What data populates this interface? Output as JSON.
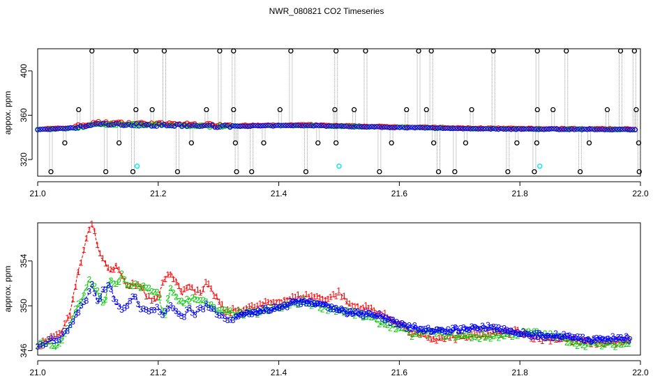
{
  "title": "NWR_080821  CO2 Timeseries",
  "colors": {
    "series1": "#ff0000",
    "series2": "#00cc00",
    "series3": "#0000ff",
    "outlier": "#000000",
    "flag": "#00e5ee",
    "connector": "#999999"
  },
  "chart_data": [
    {
      "type": "scatter",
      "panel": "top",
      "xlabel": "",
      "ylabel": "appox. ppm",
      "xlim": [
        21.0,
        22.0
      ],
      "ylim": [
        305,
        420
      ],
      "xticks": [
        "21.0",
        "21.2",
        "21.4",
        "21.6",
        "21.8",
        "22.0"
      ],
      "yticks": [
        "320",
        "360",
        "400"
      ],
      "baseline": [
        [
          21.0,
          347
        ],
        [
          21.05,
          348
        ],
        [
          21.08,
          350
        ],
        [
          21.1,
          352
        ],
        [
          21.2,
          351
        ],
        [
          21.3,
          350
        ],
        [
          21.4,
          350.5
        ],
        [
          21.45,
          350.8
        ],
        [
          21.5,
          350
        ],
        [
          21.6,
          349
        ],
        [
          21.7,
          348
        ],
        [
          21.8,
          347.5
        ],
        [
          21.9,
          347.3
        ],
        [
          21.995,
          347
        ]
      ],
      "outliers_high": [
        21.09,
        21.163,
        21.21,
        21.302,
        21.325,
        21.42,
        21.495,
        21.544,
        21.632,
        21.653,
        21.756,
        21.829,
        21.877,
        21.967,
        21.99
      ],
      "outliers_mid": [
        21.068,
        21.163,
        21.19,
        21.28,
        21.325,
        21.402,
        21.493,
        21.525,
        21.612,
        21.645,
        21.72,
        21.829,
        21.855,
        21.945,
        21.993
      ],
      "outliers_low": [
        21.045,
        21.135,
        21.255,
        21.328,
        21.375,
        21.465,
        21.495,
        21.587,
        21.657,
        21.71,
        21.795,
        21.828,
        21.915,
        21.997
      ],
      "outliers_bottom": [
        21.022,
        21.113,
        21.158,
        21.232,
        21.33,
        21.355,
        21.445,
        21.567,
        21.665,
        21.692,
        21.78,
        21.824,
        21.9,
        21.998
      ],
      "flagged": [
        [
          21.165,
          314
        ],
        [
          21.5,
          314
        ],
        [
          21.833,
          314
        ]
      ]
    },
    {
      "type": "scatter",
      "panel": "bottom",
      "xlabel": "",
      "ylabel": "approx. ppm",
      "xlim": [
        21.0,
        22.0
      ],
      "ylim": [
        345.6,
        357.4
      ],
      "xticks": [
        "21.0",
        "21.2",
        "21.4",
        "21.6",
        "21.8",
        "22.0"
      ],
      "yticks": [
        "346",
        "350",
        "354"
      ],
      "markers": [
        "1",
        "2",
        "3"
      ],
      "series": [
        {
          "marker": "1",
          "color": "#ff0000",
          "points": [
            [
              21.0,
              346.5
            ],
            [
              21.02,
              347
            ],
            [
              21.04,
              347.6
            ],
            [
              21.055,
              349.5
            ],
            [
              21.065,
              352.5
            ],
            [
              21.075,
              354.5
            ],
            [
              21.085,
              357
            ],
            [
              21.092,
              357.1
            ],
            [
              21.1,
              355
            ],
            [
              21.11,
              354
            ],
            [
              21.12,
              353
            ],
            [
              21.13,
              353.5
            ],
            [
              21.14,
              352.5
            ],
            [
              21.15,
              351.5
            ],
            [
              21.16,
              352
            ],
            [
              21.17,
              351.8
            ],
            [
              21.18,
              351
            ],
            [
              21.19,
              350.5
            ],
            [
              21.2,
              350.8
            ],
            [
              21.21,
              352.5
            ],
            [
              21.22,
              353
            ],
            [
              21.23,
              352.2
            ],
            [
              21.24,
              351
            ],
            [
              21.25,
              352
            ],
            [
              21.26,
              351.5
            ],
            [
              21.27,
              351
            ],
            [
              21.28,
              352
            ],
            [
              21.29,
              351.2
            ],
            [
              21.3,
              350.5
            ],
            [
              21.31,
              349.5
            ],
            [
              21.32,
              349.5
            ],
            [
              21.35,
              349.8
            ],
            [
              21.38,
              350.2
            ],
            [
              21.41,
              350.5
            ],
            [
              21.43,
              350.8
            ],
            [
              21.45,
              350.9
            ],
            [
              21.48,
              350.6
            ],
            [
              21.5,
              351.2
            ],
            [
              21.52,
              350
            ],
            [
              21.55,
              349.8
            ],
            [
              21.58,
              349
            ],
            [
              21.6,
              348.4
            ],
            [
              21.62,
              347.6
            ],
            [
              21.64,
              347.3
            ],
            [
              21.66,
              347
            ],
            [
              21.7,
              347.2
            ],
            [
              21.74,
              347.4
            ],
            [
              21.78,
              347.6
            ],
            [
              21.8,
              347.8
            ],
            [
              21.83,
              347
            ],
            [
              21.87,
              347.1
            ],
            [
              21.9,
              346.8
            ],
            [
              21.94,
              346.7
            ],
            [
              21.98,
              346.8
            ]
          ]
        },
        {
          "marker": "2",
          "color": "#00cc00",
          "points": [
            [
              21.0,
              346.4
            ],
            [
              21.02,
              346.7
            ],
            [
              21.03,
              346.2
            ],
            [
              21.05,
              347.8
            ],
            [
              21.065,
              349.8
            ],
            [
              21.075,
              350.8
            ],
            [
              21.085,
              352.2
            ],
            [
              21.1,
              351.2
            ],
            [
              21.11,
              350
            ],
            [
              21.12,
              352.5
            ],
            [
              21.13,
              351.8
            ],
            [
              21.14,
              352.8
            ],
            [
              21.15,
              351.5
            ],
            [
              21.16,
              352
            ],
            [
              21.18,
              351.5
            ],
            [
              21.2,
              351
            ],
            [
              21.21,
              349
            ],
            [
              21.22,
              351.5
            ],
            [
              21.24,
              350.2
            ],
            [
              21.26,
              350.8
            ],
            [
              21.28,
              350.2
            ],
            [
              21.3,
              349.5
            ],
            [
              21.35,
              349.2
            ],
            [
              21.4,
              349.8
            ],
            [
              21.44,
              350.4
            ],
            [
              21.48,
              349.8
            ],
            [
              21.52,
              349.4
            ],
            [
              21.55,
              348.9
            ],
            [
              21.58,
              348.3
            ],
            [
              21.6,
              348
            ],
            [
              21.62,
              347.4
            ],
            [
              21.65,
              347.6
            ],
            [
              21.7,
              347.3
            ],
            [
              21.74,
              347.2
            ],
            [
              21.78,
              347.4
            ],
            [
              21.82,
              347.6
            ],
            [
              21.86,
              347.2
            ],
            [
              21.9,
              346.6
            ],
            [
              21.94,
              346.5
            ],
            [
              21.98,
              346.6
            ]
          ]
        },
        {
          "marker": "3",
          "color": "#0000ff",
          "points": [
            [
              21.0,
              346.3
            ],
            [
              21.015,
              346.8
            ],
            [
              21.03,
              347
            ],
            [
              21.045,
              347.5
            ],
            [
              21.06,
              348.8
            ],
            [
              21.07,
              349.8
            ],
            [
              21.08,
              350.5
            ],
            [
              21.09,
              351.8
            ],
            [
              21.1,
              350.2
            ],
            [
              21.11,
              351.5
            ],
            [
              21.12,
              351.8
            ],
            [
              21.13,
              350.2
            ],
            [
              21.14,
              349.8
            ],
            [
              21.15,
              350.3
            ],
            [
              21.16,
              351
            ],
            [
              21.17,
              349.8
            ],
            [
              21.18,
              349.5
            ],
            [
              21.2,
              349.7
            ],
            [
              21.21,
              349.2
            ],
            [
              21.22,
              350
            ],
            [
              21.23,
              349.5
            ],
            [
              21.24,
              349
            ],
            [
              21.25,
              349.8
            ],
            [
              21.26,
              349.3
            ],
            [
              21.27,
              349.7
            ],
            [
              21.28,
              350
            ],
            [
              21.3,
              349.3
            ],
            [
              21.32,
              348.8
            ],
            [
              21.35,
              349.3
            ],
            [
              21.38,
              349.6
            ],
            [
              21.41,
              350
            ],
            [
              21.43,
              350.4
            ],
            [
              21.45,
              350.3
            ],
            [
              21.48,
              350
            ],
            [
              21.5,
              349.6
            ],
            [
              21.53,
              349.3
            ],
            [
              21.56,
              349.2
            ],
            [
              21.59,
              348.6
            ],
            [
              21.61,
              348.2
            ],
            [
              21.64,
              347.8
            ],
            [
              21.68,
              347.8
            ],
            [
              21.72,
              348
            ],
            [
              21.75,
              348.1
            ],
            [
              21.78,
              347.7
            ],
            [
              21.81,
              347.4
            ],
            [
              21.84,
              347.3
            ],
            [
              21.87,
              347.3
            ],
            [
              21.9,
              347
            ],
            [
              21.94,
              347
            ],
            [
              21.97,
              347.1
            ]
          ]
        }
      ]
    }
  ]
}
